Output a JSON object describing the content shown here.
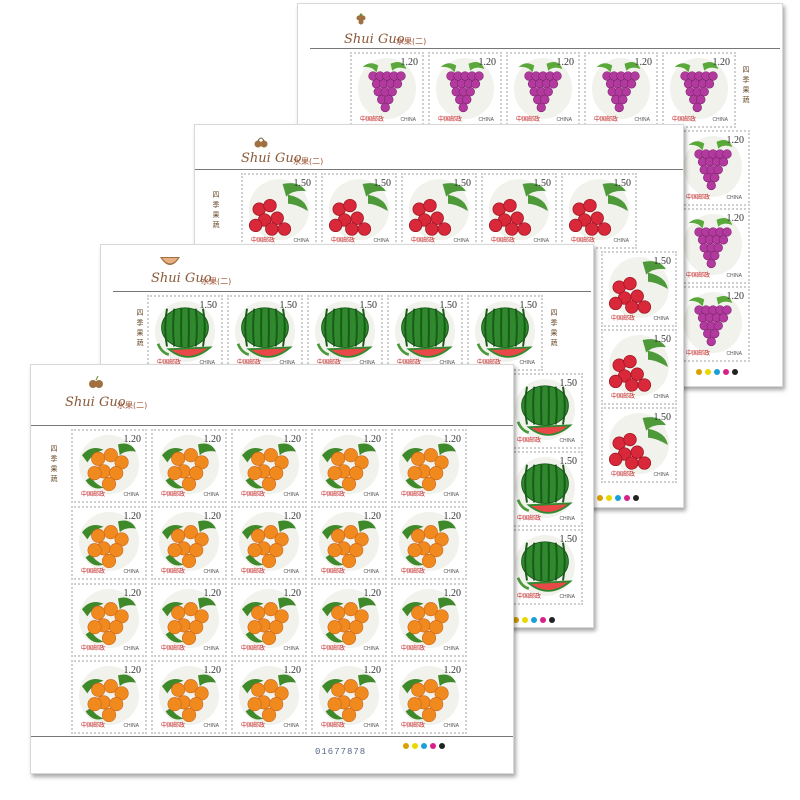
{
  "sheets": [
    {
      "id": "grape",
      "title_script": "Shui Guo",
      "title_cn": "水果(二)",
      "face_value": "1.20",
      "country": "CHINA",
      "country_cn": "中国邮政",
      "side_text": "四季果蔬",
      "fruit": "grape",
      "colors": {
        "main": "#b23a9e",
        "dark": "#7a1f6a",
        "leaf": "#5aa83a"
      }
    },
    {
      "id": "lychee",
      "title_script": "Shui Guo",
      "title_cn": "水果(二)",
      "face_value": "1.50",
      "country": "CHINA",
      "country_cn": "中国邮政",
      "side_text": "四季果蔬",
      "fruit": "lychee",
      "colors": {
        "main": "#d8283a",
        "dark": "#9a1422",
        "leaf": "#4e9a3a"
      }
    },
    {
      "id": "watermelon",
      "title_script": "Shui Guo",
      "title_cn": "水果(二)",
      "face_value": "1.50",
      "country": "CHINA",
      "country_cn": "中国邮政",
      "side_text": "四季果蔬",
      "fruit": "watermelon",
      "colors": {
        "main": "#2f8a2e",
        "dark": "#1a5a1a",
        "leaf": "#e84848"
      }
    },
    {
      "id": "apricot",
      "title_script": "Shui Guo",
      "title_cn": "水果(二)",
      "face_value": "1.20",
      "country": "CHINA",
      "country_cn": "中国邮政",
      "side_text": "四季果蔬",
      "fruit": "apricot",
      "colors": {
        "main": "#f08a1e",
        "dark": "#c8601a",
        "leaf": "#3e8a2a"
      },
      "serial": "01677878"
    }
  ],
  "control_colors": [
    "#d8a000",
    "#e8d800",
    "#1aa0d8",
    "#d8208a",
    "#222222"
  ]
}
